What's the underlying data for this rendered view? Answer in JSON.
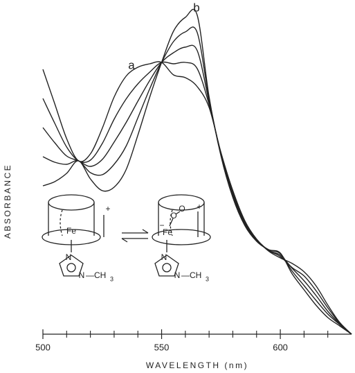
{
  "chart_data": {
    "type": "line",
    "x_label": "WAVELENGTH (nm)",
    "y_label": "ABSORBANCE",
    "x": [
      500,
      505,
      510,
      515,
      520,
      525,
      530,
      535,
      540,
      545,
      550,
      555,
      560,
      565,
      570,
      575,
      580,
      585,
      590,
      595,
      600,
      605,
      610,
      615,
      620,
      625,
      630
    ],
    "series": [
      {
        "name": "a",
        "color": "#222",
        "values": [
          38.2,
          33.2,
          28.2,
          25.0,
          26.0,
          29.7,
          34.2,
          37.2,
          38.5,
          39.0,
          39.2,
          37.4,
          37.0,
          35.7,
          32.7,
          26.2,
          20.7,
          16.4,
          13.7,
          12.0,
          11.0,
          10.2,
          9.0,
          7.0,
          4.2,
          1.7,
          0
        ]
      },
      {
        "color": "#222",
        "values": [
          34.0,
          30.4,
          27.0,
          25.0,
          25.1,
          27.5,
          31.0,
          33.9,
          36.1,
          37.8,
          39.2,
          39.0,
          39.2,
          38.3,
          33.1,
          26.1,
          20.5,
          16.3,
          13.7,
          12.1,
          11.2,
          9.6,
          8.4,
          6.3,
          3.8,
          1.6,
          0
        ]
      },
      {
        "color": "#222",
        "values": [
          29.8,
          27.6,
          25.7,
          25.0,
          24.2,
          25.2,
          27.7,
          30.5,
          33.6,
          36.6,
          39.2,
          40.6,
          41.4,
          40.9,
          33.5,
          26.0,
          20.2,
          16.1,
          13.6,
          12.1,
          11.4,
          9.5,
          7.7,
          5.6,
          3.3,
          1.5,
          0
        ]
      },
      {
        "color": "#222",
        "values": [
          25.6,
          24.8,
          24.5,
          25.0,
          23.3,
          23.0,
          24.5,
          27.1,
          31.2,
          35.4,
          39.2,
          42.2,
          43.6,
          43.5,
          33.9,
          25.9,
          20.0,
          15.9,
          13.5,
          12.2,
          11.6,
          9.1,
          7.0,
          4.9,
          2.9,
          1.4,
          0
        ]
      },
      {
        "name": "b",
        "color": "#222",
        "values": [
          21.4,
          22.0,
          23.2,
          25.0,
          22.4,
          20.7,
          21.2,
          23.7,
          28.7,
          34.2,
          39.2,
          43.7,
          45.7,
          46.0,
          34.2,
          25.7,
          19.7,
          15.7,
          13.4,
          12.2,
          11.7,
          8.7,
          6.4,
          4.2,
          2.4,
          1.2,
          0
        ]
      }
    ],
    "xlim": [
      500,
      630
    ],
    "ylim": [
      0,
      48
    ],
    "xticks": [
      500,
      550,
      600
    ],
    "xminorticks": [
      510,
      520,
      530,
      540,
      560,
      570,
      580,
      590,
      610,
      620
    ],
    "grid": false
  },
  "diagram": {
    "left": {
      "metal": "Fe",
      "charge": "+",
      "n_top": "N",
      "n_bottom": "N",
      "methyl": "—CH",
      "methyl_sub": "3"
    },
    "right": {
      "metal": "Fe",
      "charge": "+",
      "anion": "−",
      "oxygen_1": "O",
      "oxygen_2": "O",
      "n_top": "N",
      "n_bottom": "N",
      "methyl": "—CH",
      "methyl_sub": "3"
    }
  }
}
